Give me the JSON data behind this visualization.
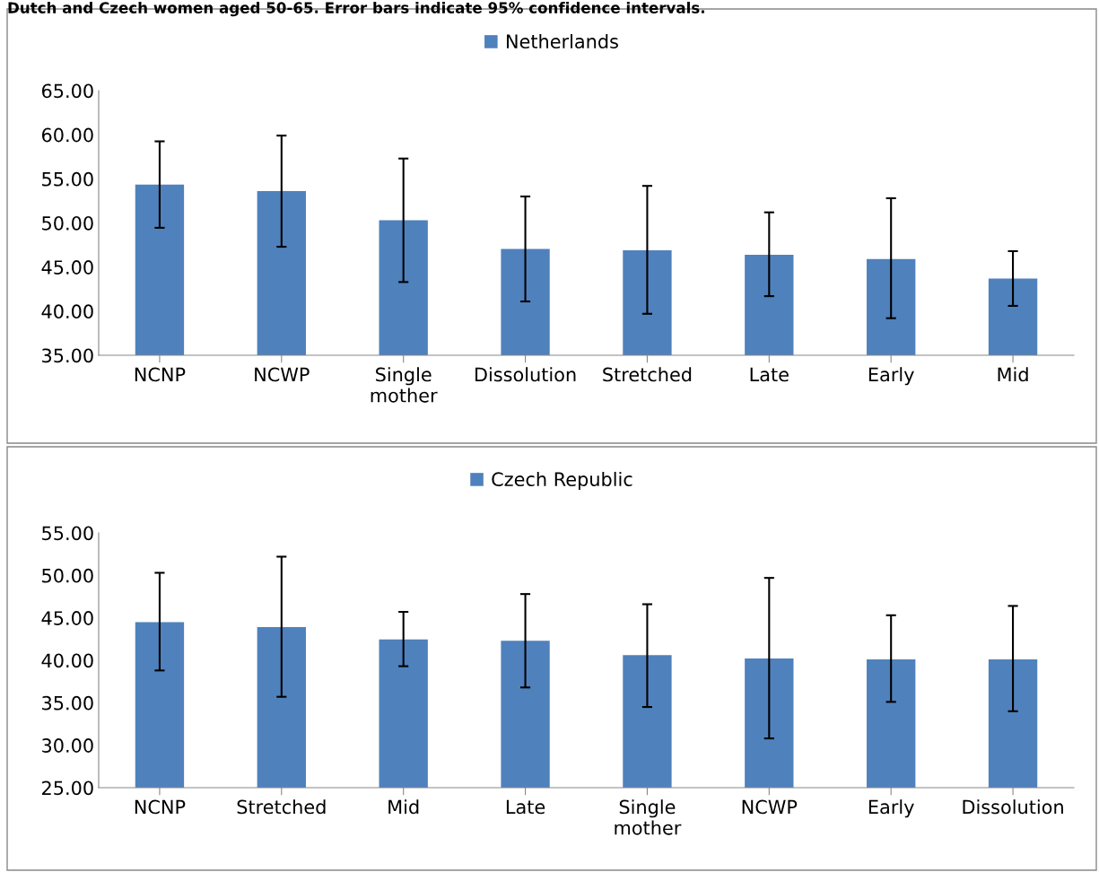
{
  "chart_data": [
    {
      "type": "bar",
      "annotations": [
        "Dutch and Czech women aged 50-65. Error bars indicate 95% confidence intervals."
      ],
      "categories": [
        "NCNP",
        "NCWP",
        "Single\nmother",
        "Dissolution",
        "Stretched",
        "Late",
        "Early",
        "Mid"
      ],
      "series": [
        {
          "name": "Netherlands",
          "color": "#4f81bd",
          "values": [
            54.35,
            53.6,
            50.3,
            47.05,
            46.9,
            46.4,
            45.9,
            43.7
          ],
          "errors": [
            [
              49.45,
              59.25
            ],
            [
              47.3,
              59.9
            ],
            [
              43.3,
              57.3
            ],
            [
              41.1,
              53.0
            ],
            [
              39.7,
              54.2
            ],
            [
              41.7,
              51.2
            ],
            [
              39.2,
              52.8
            ],
            [
              40.6,
              46.8
            ]
          ]
        }
      ],
      "ylim": [
        35,
        65
      ],
      "yticks": [
        {
          "value": 35,
          "label": "35.00"
        },
        {
          "value": 40,
          "label": "40.00"
        },
        {
          "value": 45,
          "label": "45.00"
        },
        {
          "value": 50,
          "label": "50.00"
        },
        {
          "value": 55,
          "label": "55.00"
        },
        {
          "value": 60,
          "label": "60.00"
        },
        {
          "value": 65,
          "label": "65.00"
        }
      ],
      "legend": "top",
      "grid": false
    },
    {
      "type": "bar",
      "categories": [
        "NCNP",
        "Stretched",
        "Mid",
        "Late",
        "Single\nmother",
        "NCWP",
        "Early",
        "Dissolution"
      ],
      "series": [
        {
          "name": "Czech Republic",
          "color": "#4f81bd",
          "values": [
            44.5,
            43.9,
            42.45,
            42.3,
            40.6,
            40.2,
            40.1,
            40.1
          ],
          "errors": [
            [
              38.8,
              50.3
            ],
            [
              35.7,
              52.2
            ],
            [
              39.3,
              45.7
            ],
            [
              36.8,
              47.8
            ],
            [
              34.5,
              46.6
            ],
            [
              30.8,
              49.7
            ],
            [
              35.1,
              45.3
            ],
            [
              34.0,
              46.4
            ]
          ]
        }
      ],
      "ylim": [
        25,
        55
      ],
      "yticks": [
        {
          "value": 25,
          "label": "25.00"
        },
        {
          "value": 30,
          "label": "30.00"
        },
        {
          "value": 35,
          "label": "35.00"
        },
        {
          "value": 40,
          "label": "40.00"
        },
        {
          "value": 45,
          "label": "45.00"
        },
        {
          "value": 50,
          "label": "50.00"
        },
        {
          "value": 55,
          "label": "55.00"
        }
      ],
      "legend": "top",
      "grid": false
    }
  ]
}
